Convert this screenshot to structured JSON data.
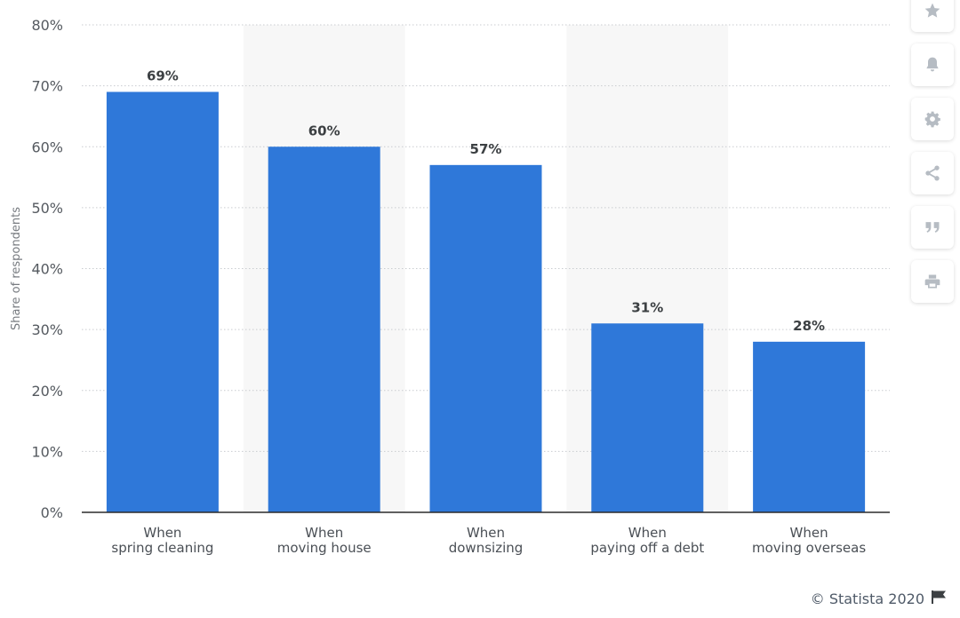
{
  "chart_data": {
    "type": "bar",
    "categories": [
      [
        "When",
        "spring cleaning"
      ],
      [
        "When",
        "moving house"
      ],
      [
        "When",
        "downsizing"
      ],
      [
        "When",
        "paying off a debt"
      ],
      [
        "When",
        "moving overseas"
      ]
    ],
    "values": [
      69,
      60,
      57,
      31,
      28
    ],
    "value_labels": [
      "69%",
      "60%",
      "57%",
      "31%",
      "28%"
    ],
    "ylabel": "Share of respondents",
    "ylim": [
      0,
      80
    ],
    "yticks": [
      0,
      10,
      20,
      30,
      40,
      50,
      60,
      70,
      80
    ],
    "ytick_labels": [
      "0%",
      "10%",
      "20%",
      "30%",
      "40%",
      "50%",
      "60%",
      "70%",
      "80%"
    ],
    "bar_color": "#2f78d9",
    "alt_band_color": "#f7f7f7",
    "grid": true
  },
  "toolbar": {
    "icons": [
      "star-icon",
      "bell-icon",
      "gear-icon",
      "share-icon",
      "quote-icon",
      "print-icon"
    ],
    "icon_color": "#b6bcc3"
  },
  "footer": {
    "credit": "© Statista 2020"
  }
}
